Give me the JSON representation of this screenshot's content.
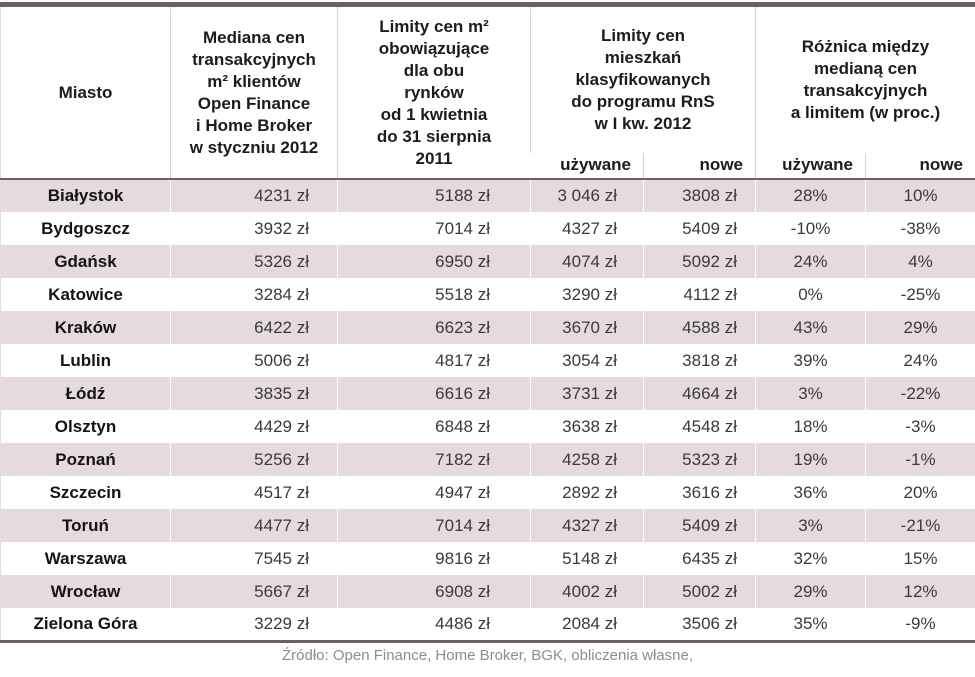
{
  "colors": {
    "accent_dark": "#6F5E69",
    "row_alt": "#E5DAE0",
    "header_divider": "#D9D2D6",
    "footer_text": "#8D8D8D"
  },
  "chart_data": {
    "type": "table",
    "header": {
      "city": "Miasto",
      "median": "Mediana cen\ntransakcyjnych\nm² klientów\nOpen Finance\ni Home Broker\nw styczniu 2012",
      "limits_sqm": "Limity cen m²\nobowiązujące\ndla obu\nrynków\nod 1 kwietnia\ndo 31 sierpnia\n2011",
      "rns_group": "Limity cen\nmieszkań\nklasyfikowanych\ndo programu RnS\nw I kw. 2012",
      "diff_group": "Różnica między\nmedianą cen\ntransakcyjnych\na limitem (w proc.)",
      "sub_rns_used": "używane",
      "sub_rns_new": "nowe",
      "sub_diff_used": "używane",
      "sub_diff_new": "nowe"
    },
    "rows": [
      [
        "Białystok",
        "4231 zł",
        "5188 zł",
        "3 046 zł",
        "3808 zł",
        "28%",
        "10%"
      ],
      [
        "Bydgoszcz",
        "3932 zł",
        "7014 zł",
        "4327 zł",
        "5409 zł",
        "-10%",
        "-38%"
      ],
      [
        "Gdańsk",
        "5326 zł",
        "6950 zł",
        "4074 zł",
        "5092 zł",
        "24%",
        "4%"
      ],
      [
        "Katowice",
        "3284 zł",
        "5518 zł",
        "3290 zł",
        "4112 zł",
        "0%",
        "-25%"
      ],
      [
        "Kraków",
        "6422 zł",
        "6623 zł",
        "3670 zł",
        "4588 zł",
        "43%",
        "29%"
      ],
      [
        "Lublin",
        "5006 zł",
        "4817 zł",
        "3054 zł",
        "3818 zł",
        "39%",
        "24%"
      ],
      [
        "Łódź",
        "3835 zł",
        "6616 zł",
        "3731 zł",
        "4664 zł",
        "3%",
        "-22%"
      ],
      [
        "Olsztyn",
        "4429 zł",
        "6848 zł",
        "3638 zł",
        "4548 zł",
        "18%",
        "-3%"
      ],
      [
        "Poznań",
        "5256 zł",
        "7182 zł",
        "4258 zł",
        "5323 zł",
        "19%",
        "-1%"
      ],
      [
        "Szczecin",
        "4517 zł",
        "4947 zł",
        "2892 zł",
        "3616 zł",
        "36%",
        "20%"
      ],
      [
        "Toruń",
        "4477 zł",
        "7014 zł",
        "4327 zł",
        "5409 zł",
        "3%",
        "-21%"
      ],
      [
        "Warszawa",
        "7545 zł",
        "9816 zł",
        "5148 zł",
        "6435 zł",
        "32%",
        "15%"
      ],
      [
        "Wrocław",
        "5667 zł",
        "6908 zł",
        "4002 zł",
        "5002 zł",
        "29%",
        "12%"
      ],
      [
        "Zielona Góra",
        "3229 zł",
        "4486 zł",
        "2084 zł",
        "3506 zł",
        "35%",
        "-9%"
      ]
    ]
  },
  "footer": {
    "source": "Źródło: Open Finance, Home Broker, BGK, obliczenia własne,"
  }
}
